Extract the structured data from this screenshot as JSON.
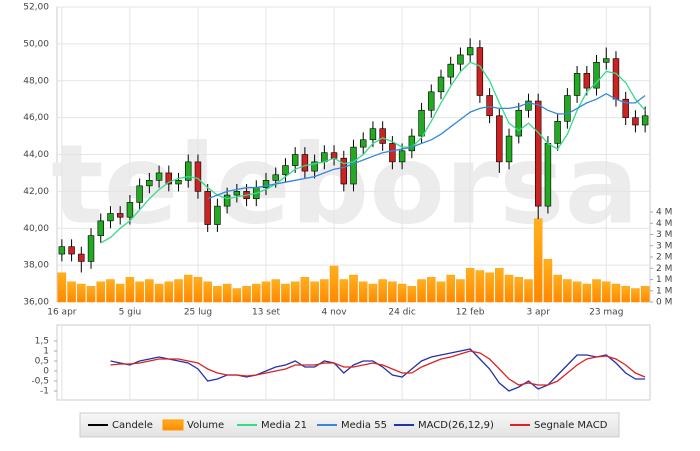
{
  "watermark": "teleborsa",
  "chart_data": [
    {
      "type": "candlestick",
      "categories": [
        "16 apr",
        null,
        null,
        null,
        null,
        null,
        null,
        "5 giu",
        null,
        null,
        null,
        null,
        null,
        null,
        "25 lug",
        null,
        null,
        null,
        null,
        null,
        null,
        "13 set",
        null,
        null,
        null,
        null,
        null,
        null,
        "4 nov",
        null,
        null,
        null,
        null,
        null,
        null,
        "24 dic",
        null,
        null,
        null,
        null,
        null,
        null,
        "12 feb",
        null,
        null,
        null,
        null,
        null,
        null,
        "3 apr",
        null,
        null,
        null,
        null,
        null,
        null,
        "23 mag",
        null,
        null,
        null,
        null
      ],
      "ylim": [
        36,
        52
      ],
      "yticks": [
        {
          "value": 36,
          "label": "36,00"
        },
        {
          "value": 38,
          "label": "38,00"
        },
        {
          "value": 40,
          "label": "40,00"
        },
        {
          "value": 42,
          "label": "42,00"
        },
        {
          "value": 44,
          "label": "44,00"
        },
        {
          "value": 46,
          "label": "46,00"
        },
        {
          "value": 48,
          "label": "48,00"
        },
        {
          "value": 50,
          "label": "50,00"
        },
        {
          "value": 52,
          "label": "52,00"
        }
      ],
      "y2lim": [
        0,
        4
      ],
      "y2ticks": [
        {
          "value": 0,
          "label": "0 M"
        },
        {
          "value": 0.5,
          "label": "1 M"
        },
        {
          "value": 1,
          "label": "1 M"
        },
        {
          "value": 1.5,
          "label": "2 M"
        },
        {
          "value": 2,
          "label": "2 M"
        },
        {
          "value": 2.5,
          "label": "3 M"
        },
        {
          "value": 3,
          "label": "3 M"
        },
        {
          "value": 3.5,
          "label": "4 M"
        },
        {
          "value": 4,
          "label": "4 M"
        }
      ],
      "grid": true,
      "series": [
        {
          "name": "Candele",
          "type": "candlestick",
          "color": "#000000",
          "up_color": "#22aa22",
          "down_color": "#cc2222",
          "open": [
            38.6,
            39.0,
            38.6,
            38.2,
            39.6,
            40.4,
            40.8,
            40.6,
            41.4,
            42.3,
            42.6,
            43.0,
            42.4,
            42.6,
            43.6,
            42.0,
            40.2,
            41.2,
            41.8,
            42.0,
            41.6,
            42.2,
            42.6,
            42.9,
            43.4,
            44.0,
            43.1,
            43.6,
            44.1,
            43.8,
            42.4,
            44.4,
            44.8,
            45.4,
            44.6,
            43.6,
            44.2,
            45.0,
            46.4,
            47.4,
            48.2,
            48.9,
            49.4,
            49.8,
            47.2,
            46.1,
            43.6,
            45.0,
            46.4,
            46.9,
            41.2,
            44.6,
            45.8,
            47.2,
            48.4,
            47.6,
            49.0,
            49.2,
            47.0,
            46.0,
            45.6
          ],
          "high": [
            39.4,
            39.4,
            39.0,
            40.0,
            40.8,
            41.2,
            41.2,
            41.8,
            42.7,
            43.0,
            43.4,
            43.4,
            43.0,
            44.0,
            44.0,
            42.4,
            41.6,
            42.2,
            42.4,
            42.4,
            42.6,
            43.0,
            43.3,
            43.8,
            44.4,
            44.4,
            44.0,
            44.5,
            44.5,
            44.2,
            44.8,
            45.2,
            45.8,
            45.8,
            45.0,
            44.6,
            45.4,
            46.8,
            47.8,
            48.6,
            49.3,
            49.8,
            50.3,
            50.2,
            47.6,
            46.5,
            45.4,
            46.8,
            47.3,
            47.3,
            45.0,
            46.2,
            47.6,
            48.8,
            48.8,
            49.4,
            49.8,
            49.6,
            47.4,
            46.4,
            46.6
          ],
          "low": [
            38.2,
            38.2,
            37.6,
            37.8,
            39.2,
            40.0,
            40.2,
            40.2,
            41.0,
            41.9,
            42.2,
            42.0,
            42.0,
            42.2,
            41.6,
            39.8,
            39.8,
            40.8,
            41.4,
            41.2,
            41.2,
            41.8,
            42.2,
            42.5,
            43.0,
            42.7,
            42.7,
            43.2,
            43.4,
            42.0,
            42.0,
            44.0,
            44.4,
            44.2,
            43.2,
            43.2,
            43.8,
            44.6,
            46.0,
            47.0,
            47.8,
            48.5,
            49.0,
            46.8,
            45.7,
            43.0,
            43.2,
            44.6,
            46.0,
            40.5,
            40.8,
            44.2,
            45.4,
            46.8,
            47.2,
            47.2,
            48.6,
            46.6,
            45.6,
            45.2,
            45.2
          ],
          "close": [
            39.0,
            38.6,
            38.2,
            39.6,
            40.4,
            40.8,
            40.6,
            41.4,
            42.3,
            42.6,
            43.0,
            42.4,
            42.6,
            43.6,
            42.0,
            40.2,
            41.2,
            41.8,
            42.0,
            41.6,
            42.2,
            42.6,
            42.9,
            43.4,
            44.0,
            43.1,
            43.6,
            44.1,
            43.8,
            42.4,
            44.4,
            44.8,
            45.4,
            44.6,
            43.6,
            44.2,
            45.0,
            46.4,
            47.4,
            48.2,
            48.9,
            49.4,
            49.8,
            47.2,
            46.1,
            43.6,
            45.0,
            46.4,
            46.9,
            41.2,
            44.6,
            45.8,
            47.2,
            48.4,
            47.6,
            49.0,
            49.2,
            47.0,
            46.0,
            45.6,
            46.1
          ]
        },
        {
          "name": "Volume",
          "type": "bar",
          "axis": "y2",
          "color": "#ff9900",
          "values": [
            1.3,
            0.9,
            0.8,
            0.7,
            0.9,
            1.0,
            0.8,
            1.1,
            0.9,
            1.0,
            0.8,
            0.9,
            1.0,
            1.2,
            1.1,
            0.9,
            0.7,
            0.8,
            0.6,
            0.7,
            0.8,
            0.9,
            1.0,
            0.8,
            0.9,
            1.1,
            0.9,
            1.0,
            1.6,
            1.0,
            1.2,
            0.9,
            0.8,
            1.0,
            0.9,
            0.8,
            0.7,
            1.0,
            1.1,
            0.9,
            1.2,
            1.0,
            1.5,
            1.4,
            1.3,
            1.5,
            1.2,
            1.1,
            1.0,
            3.7,
            1.9,
            1.2,
            1.0,
            0.9,
            0.8,
            1.0,
            0.9,
            0.8,
            0.7,
            0.6,
            0.7
          ]
        },
        {
          "name": "Media 21",
          "type": "line",
          "color": "#33dd88",
          "values": [
            null,
            null,
            null,
            null,
            39.2,
            39.5,
            40.0,
            40.4,
            41.0,
            41.6,
            42.1,
            42.5,
            42.7,
            42.8,
            42.7,
            42.2,
            41.8,
            41.6,
            41.7,
            41.8,
            41.9,
            42.1,
            42.4,
            42.8,
            43.2,
            43.4,
            43.5,
            43.6,
            43.8,
            43.5,
            43.6,
            44.0,
            44.6,
            44.9,
            44.7,
            44.4,
            44.4,
            44.9,
            45.8,
            46.8,
            47.7,
            48.5,
            49.0,
            48.8,
            48.0,
            46.8,
            45.7,
            45.3,
            45.7,
            45.2,
            44.6,
            44.3,
            45.1,
            46.4,
            47.4,
            47.9,
            48.5,
            48.4,
            47.9,
            47.0,
            46.4
          ]
        },
        {
          "name": "Media 55",
          "type": "line",
          "color": "#3388dd",
          "values": [
            null,
            null,
            null,
            null,
            null,
            null,
            null,
            null,
            null,
            null,
            null,
            null,
            null,
            null,
            null,
            41.6,
            41.8,
            42.0,
            42.1,
            42.2,
            42.2,
            42.3,
            42.4,
            42.5,
            42.6,
            42.7,
            42.8,
            43.0,
            43.2,
            43.3,
            43.5,
            43.7,
            43.9,
            44.1,
            44.2,
            44.3,
            44.4,
            44.6,
            44.8,
            45.1,
            45.5,
            45.9,
            46.3,
            46.5,
            46.6,
            46.5,
            46.5,
            46.6,
            46.8,
            46.7,
            46.4,
            46.2,
            46.2,
            46.5,
            46.8,
            47.0,
            47.3,
            47.0,
            46.8,
            46.8,
            47.2
          ]
        }
      ]
    },
    {
      "type": "line",
      "ylim": [
        -1.45,
        2.3
      ],
      "yticks": [
        {
          "value": 1.5,
          "label": "1,5"
        },
        1,
        {
          "value": 0.5,
          "label": "0,5"
        },
        0,
        {
          "value": -0.5,
          "label": "-0,5"
        },
        -1
      ],
      "series": [
        {
          "name": "MACD(26,12,9)",
          "type": "line",
          "color": "#2233aa",
          "values": [
            null,
            null,
            null,
            null,
            null,
            0.5,
            0.4,
            0.3,
            0.5,
            0.6,
            0.7,
            0.6,
            0.5,
            0.4,
            0.1,
            -0.5,
            -0.4,
            -0.2,
            -0.2,
            -0.3,
            -0.2,
            0.0,
            0.2,
            0.3,
            0.5,
            0.2,
            0.2,
            0.5,
            0.4,
            -0.1,
            0.3,
            0.5,
            0.5,
            0.2,
            -0.2,
            -0.3,
            0.1,
            0.5,
            0.7,
            0.8,
            0.9,
            1.0,
            1.1,
            0.6,
            0.1,
            -0.6,
            -1.0,
            -0.8,
            -0.5,
            -0.9,
            -0.7,
            -0.2,
            0.3,
            0.8,
            0.8,
            0.7,
            0.8,
            0.4,
            -0.1,
            -0.4,
            -0.4
          ]
        },
        {
          "name": "Segnale MACD",
          "type": "line",
          "color": "#dd2222",
          "values": [
            null,
            null,
            null,
            null,
            null,
            0.3,
            0.35,
            0.35,
            0.4,
            0.5,
            0.6,
            0.6,
            0.6,
            0.5,
            0.4,
            0.1,
            -0.1,
            -0.2,
            -0.2,
            -0.25,
            -0.2,
            -0.1,
            0.0,
            0.1,
            0.3,
            0.3,
            0.3,
            0.4,
            0.4,
            0.2,
            0.2,
            0.3,
            0.4,
            0.3,
            0.1,
            -0.1,
            -0.1,
            0.2,
            0.4,
            0.6,
            0.7,
            0.85,
            1.0,
            0.9,
            0.6,
            0.1,
            -0.4,
            -0.7,
            -0.6,
            -0.7,
            -0.7,
            -0.5,
            -0.1,
            0.3,
            0.6,
            0.7,
            0.75,
            0.6,
            0.3,
            -0.1,
            -0.3
          ]
        }
      ]
    }
  ]
}
